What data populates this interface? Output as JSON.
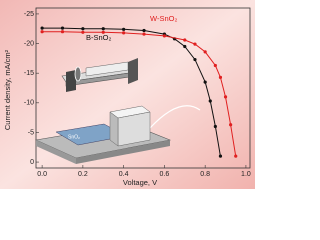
{
  "chart_data": {
    "type": "line",
    "xlabel": "Voltage, V",
    "ylabel": "Current density, mA/cm²",
    "annotation": "SnO₂",
    "xlim": [
      -0.03,
      1.02
    ],
    "ylim": [
      1,
      -26
    ],
    "xticks": [
      {
        "value": 0,
        "label": "0.0"
      },
      {
        "value": 0.2,
        "label": "0.2"
      },
      {
        "value": 0.4,
        "label": "0.4"
      },
      {
        "value": 0.6,
        "label": "0.6"
      },
      {
        "value": 0.8,
        "label": "0.8"
      },
      {
        "value": 1,
        "label": "1.0"
      }
    ],
    "yticks": [
      -25,
      -20,
      -15,
      -10,
      -5,
      0
    ],
    "series": [
      {
        "name": "B-SnO₂",
        "color": "#111111",
        "x": [
          0,
          0.1,
          0.2,
          0.3,
          0.4,
          0.5,
          0.6,
          0.65,
          0.7,
          0.75,
          0.8,
          0.825,
          0.85,
          0.875
        ],
        "values": [
          -22.6,
          -22.6,
          -22.5,
          -22.5,
          -22.4,
          -22.2,
          -21.6,
          -20.8,
          -19.5,
          -17.3,
          -13.5,
          -10.3,
          -6,
          -1
        ]
      },
      {
        "name": "W-SnO₂",
        "color": "#e02020",
        "x": [
          0,
          0.1,
          0.2,
          0.3,
          0.4,
          0.5,
          0.6,
          0.7,
          0.75,
          0.8,
          0.85,
          0.875,
          0.9,
          0.925,
          0.95
        ],
        "values": [
          -22,
          -22,
          -21.9,
          -21.9,
          -21.8,
          -21.6,
          -21.3,
          -20.6,
          -19.9,
          -18.6,
          -16.3,
          -14.3,
          -11,
          -6.3,
          -1
        ]
      }
    ]
  }
}
